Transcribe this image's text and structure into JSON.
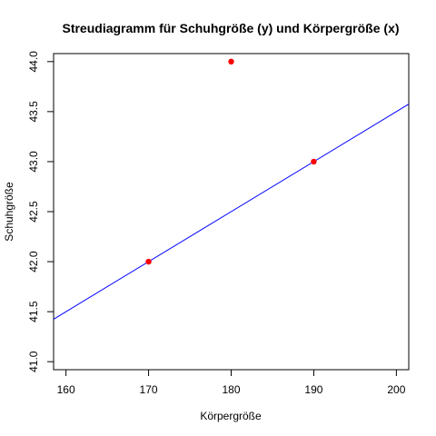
{
  "chart_data": {
    "type": "scatter",
    "title": "Streudiagramm für Schuhgröße (y) und Körpergröße (x)",
    "xlabel": "Körpergröße",
    "ylabel": "Schuhgröße",
    "xlim": [
      158.5,
      201.5
    ],
    "ylim": [
      40.92,
      44.08
    ],
    "x_ticks": [
      "160",
      "170",
      "180",
      "190",
      "200"
    ],
    "x_tick_values": [
      160,
      170,
      180,
      190,
      200
    ],
    "y_ticks": [
      "41.0",
      "41.5",
      "42.0",
      "42.5",
      "43.0",
      "43.5",
      "44.0"
    ],
    "y_tick_values": [
      41.0,
      41.5,
      42.0,
      42.5,
      43.0,
      43.5,
      44.0
    ],
    "points": [
      {
        "x": 170,
        "y": 42
      },
      {
        "x": 180,
        "y": 44
      },
      {
        "x": 190,
        "y": 43
      }
    ],
    "regression_line": {
      "intercept": 33.5,
      "slope": 0.05
    },
    "colors": {
      "points": "#ff0000",
      "line": "#0000ff"
    },
    "grid": false
  }
}
